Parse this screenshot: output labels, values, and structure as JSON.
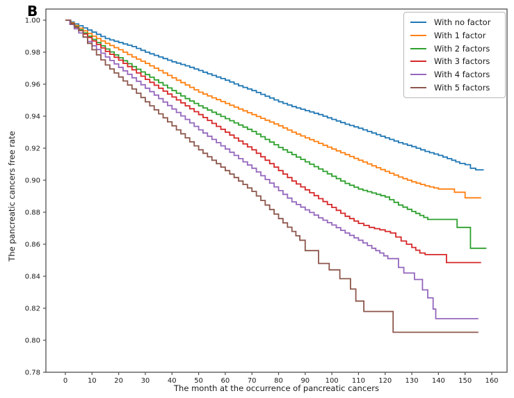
{
  "figure_label": "B",
  "chart_data": {
    "type": "line",
    "subtype": "kaplan-meier-step",
    "title": "",
    "xlabel": "The month at the occurrence of pancreatic cancers",
    "ylabel": "The pancreatic cancers free rate",
    "xlim": [
      -8,
      166
    ],
    "ylim": [
      0.78,
      1.005
    ],
    "x_ticks": [
      0,
      10,
      20,
      30,
      40,
      50,
      60,
      70,
      80,
      90,
      100,
      110,
      120,
      130,
      140,
      150,
      160
    ],
    "y_ticks": [
      0.78,
      0.8,
      0.82,
      0.84,
      0.86,
      0.88,
      0.9,
      0.92,
      0.94,
      0.96,
      0.98,
      1.0
    ],
    "grid": false,
    "legend_position": "upper right",
    "axis_color": "#4d4d4d",
    "text_color": "#1a1a1a",
    "series": [
      {
        "name": "With no factor",
        "color": "#1f77b4",
        "points": [
          [
            0,
            1.0
          ],
          [
            5,
            0.9965
          ],
          [
            10,
            0.9925
          ],
          [
            15,
            0.9885
          ],
          [
            20,
            0.986
          ],
          [
            25,
            0.9835
          ],
          [
            30,
            0.98
          ],
          [
            35,
            0.977
          ],
          [
            40,
            0.974
          ],
          [
            45,
            0.9715
          ],
          [
            50,
            0.9685
          ],
          [
            55,
            0.9655
          ],
          [
            60,
            0.9625
          ],
          [
            65,
            0.959
          ],
          [
            70,
            0.956
          ],
          [
            75,
            0.9525
          ],
          [
            80,
            0.949
          ],
          [
            85,
            0.946
          ],
          [
            90,
            0.9435
          ],
          [
            95,
            0.941
          ],
          [
            100,
            0.938
          ],
          [
            105,
            0.935
          ],
          [
            110,
            0.9325
          ],
          [
            115,
            0.9295
          ],
          [
            120,
            0.9265
          ],
          [
            125,
            0.9235
          ],
          [
            130,
            0.921
          ],
          [
            135,
            0.918
          ],
          [
            140,
            0.9155
          ],
          [
            145,
            0.9125
          ],
          [
            148,
            0.9105
          ],
          [
            152,
            0.909
          ],
          [
            152,
            0.9075
          ],
          [
            154,
            0.9075
          ],
          [
            154,
            0.9065
          ],
          [
            157,
            0.9065
          ]
        ]
      },
      {
        "name": "With 1 factor",
        "color": "#ff7f0e",
        "points": [
          [
            0,
            1.0
          ],
          [
            5,
            0.995
          ],
          [
            10,
            0.99
          ],
          [
            15,
            0.9855
          ],
          [
            20,
            0.9815
          ],
          [
            25,
            0.977
          ],
          [
            30,
            0.973
          ],
          [
            35,
            0.9685
          ],
          [
            40,
            0.964
          ],
          [
            45,
            0.9595
          ],
          [
            50,
            0.955
          ],
          [
            55,
            0.9515
          ],
          [
            60,
            0.948
          ],
          [
            65,
            0.9445
          ],
          [
            70,
            0.941
          ],
          [
            75,
            0.9375
          ],
          [
            80,
            0.934
          ],
          [
            85,
            0.93
          ],
          [
            90,
            0.9265
          ],
          [
            95,
            0.923
          ],
          [
            100,
            0.9195
          ],
          [
            105,
            0.916
          ],
          [
            110,
            0.9125
          ],
          [
            115,
            0.909
          ],
          [
            120,
            0.9055
          ],
          [
            125,
            0.902
          ],
          [
            130,
            0.899
          ],
          [
            135,
            0.8965
          ],
          [
            140,
            0.8945
          ],
          [
            146,
            0.8945
          ],
          [
            146,
            0.8925
          ],
          [
            150,
            0.8925
          ],
          [
            150,
            0.889
          ],
          [
            156,
            0.889
          ]
        ]
      },
      {
        "name": "With 2 factors",
        "color": "#2ca02c",
        "points": [
          [
            0,
            1.0
          ],
          [
            5,
            0.994
          ],
          [
            10,
            0.988
          ],
          [
            15,
            0.982
          ],
          [
            20,
            0.9765
          ],
          [
            25,
            0.971
          ],
          [
            30,
            0.966
          ],
          [
            35,
            0.961
          ],
          [
            40,
            0.956
          ],
          [
            45,
            0.951
          ],
          [
            50,
            0.9465
          ],
          [
            55,
            0.9425
          ],
          [
            60,
            0.9385
          ],
          [
            65,
            0.9345
          ],
          [
            70,
            0.9305
          ],
          [
            75,
            0.9255
          ],
          [
            80,
            0.9205
          ],
          [
            85,
            0.916
          ],
          [
            90,
            0.9115
          ],
          [
            95,
            0.907
          ],
          [
            100,
            0.9025
          ],
          [
            105,
            0.898
          ],
          [
            110,
            0.8945
          ],
          [
            115,
            0.892
          ],
          [
            120,
            0.8895
          ],
          [
            125,
            0.8845
          ],
          [
            130,
            0.8805
          ],
          [
            133,
            0.878
          ],
          [
            136,
            0.8755
          ],
          [
            147,
            0.8755
          ],
          [
            147,
            0.8705
          ],
          [
            152,
            0.8705
          ],
          [
            152,
            0.8575
          ],
          [
            158,
            0.8575
          ]
        ]
      },
      {
        "name": "With 3 factors",
        "color": "#d62728",
        "points": [
          [
            0,
            1.0
          ],
          [
            5,
            0.9935
          ],
          [
            10,
            0.987
          ],
          [
            15,
            0.9805
          ],
          [
            20,
            0.975
          ],
          [
            25,
            0.969
          ],
          [
            30,
            0.963
          ],
          [
            35,
            0.9575
          ],
          [
            40,
            0.952
          ],
          [
            45,
            0.9465
          ],
          [
            50,
            0.941
          ],
          [
            55,
            0.9355
          ],
          [
            60,
            0.93
          ],
          [
            65,
            0.9245
          ],
          [
            70,
            0.919
          ],
          [
            75,
            0.9125
          ],
          [
            80,
            0.906
          ],
          [
            85,
            0.8995
          ],
          [
            90,
            0.894
          ],
          [
            95,
            0.8885
          ],
          [
            100,
            0.883
          ],
          [
            105,
            0.8775
          ],
          [
            110,
            0.873
          ],
          [
            114,
            0.8705
          ],
          [
            118,
            0.869
          ],
          [
            122,
            0.867
          ],
          [
            126,
            0.862
          ],
          [
            130,
            0.858
          ],
          [
            133,
            0.8545
          ],
          [
            135,
            0.8535
          ],
          [
            143,
            0.8535
          ],
          [
            143,
            0.8485
          ],
          [
            156,
            0.8485
          ]
        ]
      },
      {
        "name": "With 4 factors",
        "color": "#9467bd",
        "points": [
          [
            0,
            1.0
          ],
          [
            5,
            0.992
          ],
          [
            10,
            0.984
          ],
          [
            15,
            0.977
          ],
          [
            20,
            0.9705
          ],
          [
            25,
            0.964
          ],
          [
            30,
            0.9575
          ],
          [
            35,
            0.951
          ],
          [
            40,
            0.9445
          ],
          [
            45,
            0.938
          ],
          [
            50,
            0.9315
          ],
          [
            55,
            0.9255
          ],
          [
            60,
            0.9195
          ],
          [
            65,
            0.9135
          ],
          [
            70,
            0.9075
          ],
          [
            75,
            0.9005
          ],
          [
            80,
            0.8935
          ],
          [
            85,
            0.8865
          ],
          [
            90,
            0.8815
          ],
          [
            95,
            0.8765
          ],
          [
            100,
            0.872
          ],
          [
            105,
            0.867
          ],
          [
            110,
            0.8625
          ],
          [
            115,
            0.8575
          ],
          [
            118,
            0.8545
          ],
          [
            121,
            0.851
          ],
          [
            125,
            0.851
          ],
          [
            125,
            0.8455
          ],
          [
            127,
            0.8455
          ],
          [
            127,
            0.842
          ],
          [
            131,
            0.842
          ],
          [
            131,
            0.838
          ],
          [
            134,
            0.838
          ],
          [
            134,
            0.8315
          ],
          [
            136,
            0.8315
          ],
          [
            136,
            0.8265
          ],
          [
            138,
            0.8265
          ],
          [
            138,
            0.8195
          ],
          [
            139,
            0.8195
          ],
          [
            139,
            0.8135
          ],
          [
            155,
            0.8135
          ]
        ]
      },
      {
        "name": "With 5 factors",
        "color": "#8c564b",
        "points": [
          [
            0,
            1.0
          ],
          [
            2,
            0.9975
          ],
          [
            5,
            0.9935
          ],
          [
            10,
            0.9815
          ],
          [
            15,
            0.972
          ],
          [
            20,
            0.9645
          ],
          [
            25,
            0.957
          ],
          [
            30,
            0.949
          ],
          [
            35,
            0.9415
          ],
          [
            40,
            0.934
          ],
          [
            45,
            0.9265
          ],
          [
            50,
            0.919
          ],
          [
            55,
            0.9125
          ],
          [
            60,
            0.906
          ],
          [
            65,
            0.8995
          ],
          [
            70,
            0.893
          ],
          [
            75,
            0.8845
          ],
          [
            80,
            0.876
          ],
          [
            85,
            0.868
          ],
          [
            88,
            0.8625
          ],
          [
            90,
            0.8625
          ],
          [
            90,
            0.856
          ],
          [
            95,
            0.856
          ],
          [
            95,
            0.848
          ],
          [
            99,
            0.848
          ],
          [
            99,
            0.844
          ],
          [
            103,
            0.844
          ],
          [
            103,
            0.8385
          ],
          [
            107,
            0.8385
          ],
          [
            107,
            0.832
          ],
          [
            109,
            0.832
          ],
          [
            109,
            0.8245
          ],
          [
            112,
            0.8245
          ],
          [
            112,
            0.818
          ],
          [
            123,
            0.818
          ],
          [
            123,
            0.805
          ],
          [
            155,
            0.805
          ]
        ]
      }
    ]
  }
}
